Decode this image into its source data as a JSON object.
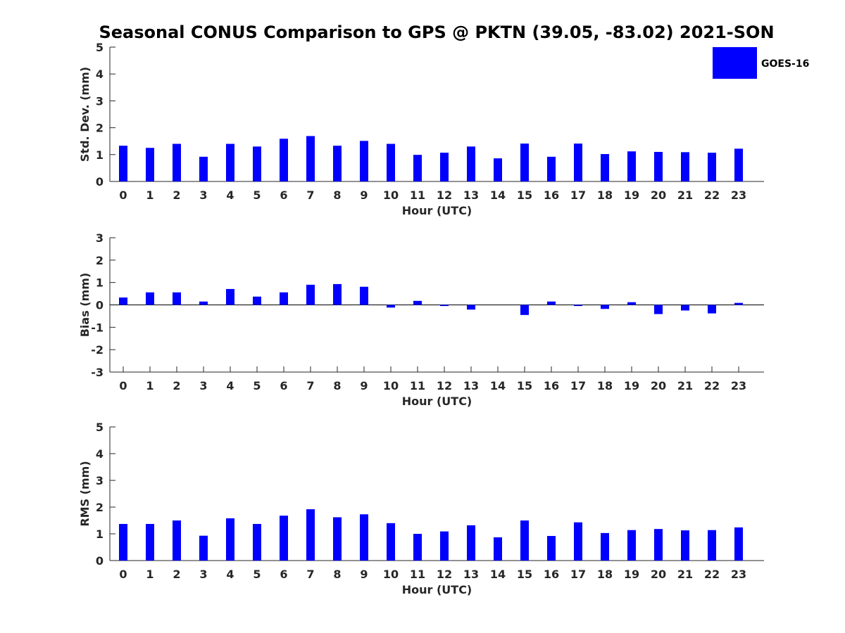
{
  "title": "Seasonal CONUS Comparison to GPS @ PKTN (39.05, -83.02) 2021-SON",
  "legend": {
    "label": "GOES-16",
    "color": "#0000ff",
    "placement": "top-right"
  },
  "chart_data": [
    {
      "type": "bar",
      "xlabel": "Hour (UTC)",
      "ylabel": "Std. Dev. (mm)",
      "ylim": [
        0,
        5
      ],
      "yticks": [
        0,
        1,
        2,
        3,
        4,
        5
      ],
      "categories": [
        "0",
        "1",
        "2",
        "3",
        "4",
        "5",
        "6",
        "7",
        "8",
        "9",
        "10",
        "11",
        "12",
        "13",
        "14",
        "15",
        "16",
        "17",
        "18",
        "19",
        "20",
        "21",
        "22",
        "23"
      ],
      "series": [
        {
          "name": "GOES-16",
          "color": "#0000ff",
          "values": [
            1.33,
            1.25,
            1.4,
            0.92,
            1.4,
            1.3,
            1.59,
            1.69,
            1.33,
            1.51,
            1.4,
            0.99,
            1.07,
            1.3,
            0.86,
            1.41,
            0.92,
            1.41,
            1.02,
            1.12,
            1.1,
            1.09,
            1.07,
            1.22
          ]
        }
      ],
      "grid": false
    },
    {
      "type": "bar",
      "xlabel": "Hour (UTC)",
      "ylabel": "Bias (mm)",
      "ylim": [
        -3,
        3
      ],
      "yticks": [
        -3,
        -2,
        -1,
        0,
        1,
        2,
        3
      ],
      "categories": [
        "0",
        "1",
        "2",
        "3",
        "4",
        "5",
        "6",
        "7",
        "8",
        "9",
        "10",
        "11",
        "12",
        "13",
        "14",
        "15",
        "16",
        "17",
        "18",
        "19",
        "20",
        "21",
        "22",
        "23"
      ],
      "series": [
        {
          "name": "GOES-16",
          "color": "#0000ff",
          "values": [
            0.33,
            0.56,
            0.56,
            0.15,
            0.71,
            0.37,
            0.56,
            0.9,
            0.93,
            0.81,
            -0.12,
            0.18,
            -0.05,
            -0.21,
            0.0,
            -0.45,
            0.15,
            -0.05,
            -0.18,
            0.12,
            -0.41,
            -0.25,
            -0.38,
            0.09
          ]
        }
      ],
      "grid": false
    },
    {
      "type": "bar",
      "xlabel": "Hour (UTC)",
      "ylabel": "RMS (mm)",
      "ylim": [
        0,
        5
      ],
      "yticks": [
        0,
        1,
        2,
        3,
        4,
        5
      ],
      "categories": [
        "0",
        "1",
        "2",
        "3",
        "4",
        "5",
        "6",
        "7",
        "8",
        "9",
        "10",
        "11",
        "12",
        "13",
        "14",
        "15",
        "16",
        "17",
        "18",
        "19",
        "20",
        "21",
        "22",
        "23"
      ],
      "series": [
        {
          "name": "GOES-16",
          "color": "#0000ff",
          "values": [
            1.37,
            1.37,
            1.5,
            0.93,
            1.58,
            1.37,
            1.68,
            1.92,
            1.62,
            1.73,
            1.4,
            1.0,
            1.09,
            1.32,
            0.87,
            1.5,
            0.92,
            1.43,
            1.03,
            1.14,
            1.18,
            1.13,
            1.14,
            1.24
          ]
        }
      ],
      "grid": false
    }
  ]
}
